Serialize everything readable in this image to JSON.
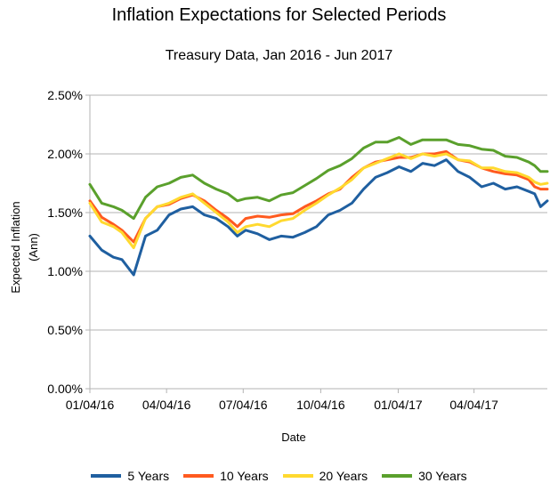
{
  "chart_data": {
    "type": "line",
    "title": "Inflation Expectations for Selected Periods",
    "subtitle": "Treasury Data, Jan 2016 - Jun 2017",
    "xlabel": "Date",
    "ylabel": "Expected Inflation (Ann)",
    "x_ticks": [
      "01/04/16",
      "04/04/16",
      "07/04/16",
      "10/04/16",
      "01/04/17",
      "04/04/17"
    ],
    "y_ticks": [
      "0.00%",
      "0.50%",
      "1.00%",
      "1.50%",
      "2.00%",
      "2.50%"
    ],
    "ylim": [
      0,
      2.5
    ],
    "xlim": [
      "2016-01-04",
      "2017-06-30"
    ],
    "grid": "horizontal",
    "legend_position": "bottom",
    "x": [
      "2016-01-04",
      "2016-01-18",
      "2016-02-01",
      "2016-02-11",
      "2016-02-25",
      "2016-03-10",
      "2016-03-24",
      "2016-04-07",
      "2016-04-21",
      "2016-05-05",
      "2016-05-19",
      "2016-06-02",
      "2016-06-16",
      "2016-06-27",
      "2016-07-07",
      "2016-07-21",
      "2016-08-04",
      "2016-08-18",
      "2016-09-01",
      "2016-09-15",
      "2016-09-29",
      "2016-10-13",
      "2016-10-27",
      "2016-11-10",
      "2016-11-24",
      "2016-12-08",
      "2016-12-22",
      "2017-01-05",
      "2017-01-19",
      "2017-02-02",
      "2017-02-16",
      "2017-03-02",
      "2017-03-16",
      "2017-03-30",
      "2017-04-13",
      "2017-04-27",
      "2017-05-11",
      "2017-05-25",
      "2017-06-08",
      "2017-06-15",
      "2017-06-22",
      "2017-06-30"
    ],
    "series": [
      {
        "name": "5 Years",
        "color": "#1f5fa0",
        "values": [
          1.3,
          1.18,
          1.12,
          1.1,
          0.97,
          1.3,
          1.35,
          1.48,
          1.53,
          1.55,
          1.48,
          1.45,
          1.38,
          1.3,
          1.35,
          1.32,
          1.27,
          1.3,
          1.29,
          1.33,
          1.38,
          1.48,
          1.52,
          1.58,
          1.7,
          1.8,
          1.84,
          1.89,
          1.85,
          1.92,
          1.9,
          1.95,
          1.85,
          1.8,
          1.72,
          1.75,
          1.7,
          1.72,
          1.68,
          1.66,
          1.55,
          1.6
        ]
      },
      {
        "name": "10 Years",
        "color": "#ff5a1f",
        "values": [
          1.6,
          1.46,
          1.4,
          1.35,
          1.25,
          1.45,
          1.55,
          1.57,
          1.62,
          1.65,
          1.6,
          1.52,
          1.45,
          1.38,
          1.45,
          1.47,
          1.46,
          1.48,
          1.49,
          1.55,
          1.6,
          1.66,
          1.7,
          1.8,
          1.88,
          1.93,
          1.95,
          1.97,
          1.97,
          2.0,
          2.0,
          2.02,
          1.95,
          1.93,
          1.88,
          1.85,
          1.83,
          1.82,
          1.78,
          1.72,
          1.7,
          1.7
        ]
      },
      {
        "name": "20 Years",
        "color": "#ffd92f",
        "values": [
          1.58,
          1.42,
          1.38,
          1.33,
          1.2,
          1.45,
          1.55,
          1.58,
          1.63,
          1.66,
          1.58,
          1.5,
          1.42,
          1.33,
          1.38,
          1.4,
          1.38,
          1.43,
          1.45,
          1.52,
          1.58,
          1.65,
          1.71,
          1.78,
          1.88,
          1.92,
          1.96,
          2.0,
          1.96,
          2.0,
          1.98,
          2.0,
          1.95,
          1.94,
          1.88,
          1.88,
          1.85,
          1.84,
          1.8,
          1.76,
          1.74,
          1.75
        ]
      },
      {
        "name": "30 Years",
        "color": "#5aa02c",
        "values": [
          1.74,
          1.58,
          1.55,
          1.52,
          1.45,
          1.63,
          1.72,
          1.75,
          1.8,
          1.82,
          1.75,
          1.7,
          1.66,
          1.6,
          1.62,
          1.63,
          1.6,
          1.65,
          1.67,
          1.73,
          1.79,
          1.86,
          1.9,
          1.96,
          2.05,
          2.1,
          2.1,
          2.14,
          2.08,
          2.12,
          2.12,
          2.12,
          2.08,
          2.07,
          2.04,
          2.03,
          1.98,
          1.97,
          1.93,
          1.9,
          1.85,
          1.85
        ]
      }
    ]
  }
}
